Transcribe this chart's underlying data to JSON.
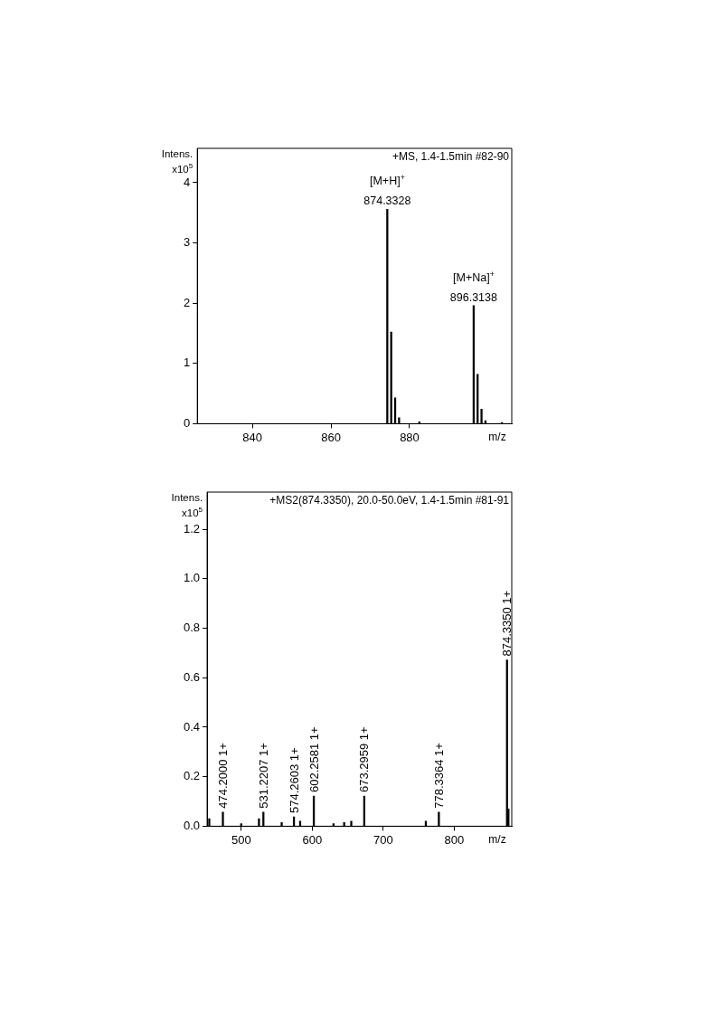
{
  "chart_data": [
    {
      "type": "bar",
      "ylabel": "Intens. x10$^{5}$",
      "xlabel": "m/z",
      "x": [
        874.3328,
        875.33,
        876.33,
        877.33,
        882.5,
        896.3138,
        897.31,
        898.31,
        899.31,
        903.5
      ],
      "values": [
        3.56,
        1.52,
        0.43,
        0.1,
        0.03,
        1.96,
        0.82,
        0.24,
        0.05,
        0.02
      ],
      "color": "#000000",
      "xlim": [
        826,
        906
      ],
      "xticks": [
        840,
        860,
        880
      ],
      "ylim": [
        0,
        4.57
      ],
      "yticks": [
        0,
        1,
        2,
        3,
        4
      ],
      "annotations": [
        "+MS, 1.4-1.5min #82-90",
        {
          "text": "874.3328",
          "x": 874.3328,
          "y": 3.56
        },
        {
          "text": "[M+H]$^{+}$",
          "x": 874.3328,
          "y": 3.56
        },
        {
          "text": "896.3138",
          "x": 896.3138,
          "y": 1.96
        },
        {
          "text": "[M+Na]$^{+}$",
          "x": 896.3138,
          "y": 1.96
        }
      ],
      "grid": false,
      "legend": false
    },
    {
      "type": "bar",
      "ylabel": "Intens. x10$^{5}$",
      "xlabel": "m/z",
      "x": [
        455,
        474.2,
        500,
        525,
        531.2207,
        557,
        574.2603,
        583,
        602.2581,
        630,
        645,
        655,
        673.2959,
        760,
        778.3364,
        874.335,
        876.3
      ],
      "values": [
        0.03,
        0.057,
        0.01,
        0.03,
        0.057,
        0.015,
        0.038,
        0.02,
        0.122,
        0.01,
        0.015,
        0.02,
        0.122,
        0.02,
        0.057,
        0.672,
        0.07
      ],
      "color": "#000000",
      "xlim": [
        452,
        881
      ],
      "xticks": [
        500,
        600,
        700,
        800
      ],
      "ylim": [
        0,
        1.35
      ],
      "yticks": [
        {
          "value": 0,
          "label": "0.0"
        },
        {
          "value": 0.2,
          "label": "0.2"
        },
        {
          "value": 0.4,
          "label": "0.4"
        },
        {
          "value": 0.6,
          "label": "0.6"
        },
        {
          "value": 0.8,
          "label": "0.8"
        },
        {
          "value": 1.0,
          "label": "1.0"
        },
        {
          "value": 1.2,
          "label": "1.2"
        }
      ],
      "annotations": [
        "+MS2(874.3350), 20.0-50.0eV, 1.4-1.5min #81-91",
        {
          "text": "474.2000 1+",
          "x": 474.2,
          "y": 0.057
        },
        {
          "text": "531.2207 1+",
          "x": 531.2207,
          "y": 0.057
        },
        {
          "text": "574.2603 1+",
          "x": 574.2603,
          "y": 0.038
        },
        {
          "text": "602.2581 1+",
          "x": 602.2581,
          "y": 0.122
        },
        {
          "text": "673.2959 1+",
          "x": 673.2959,
          "y": 0.122
        },
        {
          "text": "778.3364 1+",
          "x": 778.3364,
          "y": 0.057
        },
        {
          "text": "874.3350 1+",
          "x": 874.335,
          "y": 0.672
        }
      ],
      "grid": false,
      "legend": false
    }
  ]
}
